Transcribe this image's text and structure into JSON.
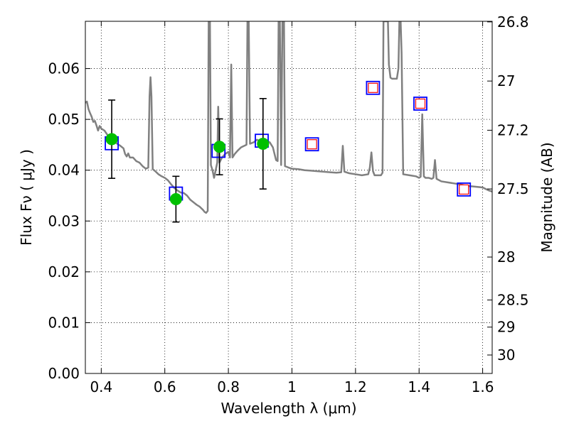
{
  "chart_data": {
    "type": "scatter",
    "xlabel": "Wavelength  λ (μm)",
    "ylabel": "Flux  Fν  ( μJy )",
    "ylabel_right": "Magnitude (AB)",
    "xlim": [
      0.35,
      1.63
    ],
    "ylim": [
      0.0,
      0.0693
    ],
    "grid": true,
    "grid_style": "dotted",
    "x_ticks": [
      0.4,
      0.6,
      0.8,
      1.0,
      1.2,
      1.4,
      1.6
    ],
    "x_tick_labels": [
      "0.4",
      "0.6",
      "0.8",
      "1",
      "1.2",
      "1.4",
      "1.6"
    ],
    "y_ticks": [
      0.0,
      0.01,
      0.02,
      0.03,
      0.04,
      0.05,
      0.06
    ],
    "y_tick_labels": [
      "0.00",
      "0.01",
      "0.02",
      "0.03",
      "0.04",
      "0.05",
      "0.06"
    ],
    "right_ticks": [
      26.8,
      27.0,
      27.2,
      27.5,
      28.0,
      28.5,
      29.0,
      30.0
    ],
    "right_tick_labels": [
      "26.8",
      "27",
      "27.2",
      "27.5",
      "28",
      "28.5",
      "29",
      "30"
    ],
    "series": [
      {
        "style": "line",
        "color": "#808080",
        "points": [
          [
            0.35,
            0.0533
          ],
          [
            0.355,
            0.0535
          ],
          [
            0.36,
            0.052
          ],
          [
            0.365,
            0.0512
          ],
          [
            0.37,
            0.0505
          ],
          [
            0.375,
            0.0495
          ],
          [
            0.38,
            0.0497
          ],
          [
            0.385,
            0.0488
          ],
          [
            0.39,
            0.0478
          ],
          [
            0.395,
            0.0487
          ],
          [
            0.4,
            0.0482
          ],
          [
            0.41,
            0.0478
          ],
          [
            0.42,
            0.0469
          ],
          [
            0.43,
            0.0466
          ],
          [
            0.44,
            0.0458
          ],
          [
            0.45,
            0.0452
          ],
          [
            0.46,
            0.0448
          ],
          [
            0.47,
            0.0443
          ],
          [
            0.475,
            0.0432
          ],
          [
            0.48,
            0.0427
          ],
          [
            0.485,
            0.0433
          ],
          [
            0.49,
            0.0425
          ],
          [
            0.5,
            0.0425
          ],
          [
            0.51,
            0.0418
          ],
          [
            0.52,
            0.0415
          ],
          [
            0.53,
            0.0408
          ],
          [
            0.54,
            0.0403
          ],
          [
            0.548,
            0.0405
          ],
          [
            0.552,
            0.0545
          ],
          [
            0.555,
            0.0583
          ],
          [
            0.558,
            0.0545
          ],
          [
            0.562,
            0.0402
          ],
          [
            0.57,
            0.0398
          ],
          [
            0.58,
            0.0392
          ],
          [
            0.59,
            0.0388
          ],
          [
            0.6,
            0.0385
          ],
          [
            0.61,
            0.038
          ],
          [
            0.62,
            0.0372
          ],
          [
            0.63,
            0.0365
          ],
          [
            0.64,
            0.036
          ],
          [
            0.65,
            0.0356
          ],
          [
            0.66,
            0.0355
          ],
          [
            0.67,
            0.035
          ],
          [
            0.68,
            0.0342
          ],
          [
            0.69,
            0.0337
          ],
          [
            0.7,
            0.0332
          ],
          [
            0.71,
            0.0328
          ],
          [
            0.72,
            0.0322
          ],
          [
            0.725,
            0.0318
          ],
          [
            0.73,
            0.0316
          ],
          [
            0.735,
            0.032
          ],
          [
            0.738,
            0.0693
          ],
          [
            0.742,
            0.0693
          ],
          [
            0.745,
            0.041
          ],
          [
            0.75,
            0.04
          ],
          [
            0.755,
            0.0385
          ],
          [
            0.76,
            0.04
          ],
          [
            0.765,
            0.0415
          ],
          [
            0.768,
            0.0525
          ],
          [
            0.772,
            0.0415
          ],
          [
            0.78,
            0.0425
          ],
          [
            0.79,
            0.0432
          ],
          [
            0.8,
            0.0436
          ],
          [
            0.805,
            0.0425
          ],
          [
            0.809,
            0.0608
          ],
          [
            0.813,
            0.0425
          ],
          [
            0.82,
            0.0432
          ],
          [
            0.83,
            0.0439
          ],
          [
            0.84,
            0.0445
          ],
          [
            0.85,
            0.0448
          ],
          [
            0.857,
            0.045
          ],
          [
            0.86,
            0.0693
          ],
          [
            0.864,
            0.0693
          ],
          [
            0.868,
            0.0452
          ],
          [
            0.88,
            0.0455
          ],
          [
            0.89,
            0.046
          ],
          [
            0.9,
            0.0457
          ],
          [
            0.91,
            0.0462
          ],
          [
            0.92,
            0.0458
          ],
          [
            0.93,
            0.0455
          ],
          [
            0.94,
            0.0445
          ],
          [
            0.95,
            0.042
          ],
          [
            0.955,
            0.0418
          ],
          [
            0.958,
            0.0693
          ],
          [
            0.962,
            0.0693
          ],
          [
            0.966,
            0.041
          ],
          [
            0.97,
            0.0693
          ],
          [
            0.975,
            0.0693
          ],
          [
            0.978,
            0.0408
          ],
          [
            0.99,
            0.0405
          ],
          [
            1.0,
            0.0403
          ],
          [
            1.02,
            0.0402
          ],
          [
            1.04,
            0.04
          ],
          [
            1.06,
            0.0399
          ],
          [
            1.08,
            0.0398
          ],
          [
            1.1,
            0.0397
          ],
          [
            1.12,
            0.0396
          ],
          [
            1.14,
            0.0395
          ],
          [
            1.155,
            0.0396
          ],
          [
            1.16,
            0.0448
          ],
          [
            1.165,
            0.0397
          ],
          [
            1.18,
            0.0394
          ],
          [
            1.2,
            0.0392
          ],
          [
            1.22,
            0.039
          ],
          [
            1.24,
            0.0392
          ],
          [
            1.245,
            0.0405
          ],
          [
            1.25,
            0.0435
          ],
          [
            1.255,
            0.0398
          ],
          [
            1.26,
            0.039
          ],
          [
            1.27,
            0.039
          ],
          [
            1.28,
            0.039
          ],
          [
            1.285,
            0.0395
          ],
          [
            1.288,
            0.0693
          ],
          [
            1.292,
            0.0693
          ],
          [
            1.3,
            0.0693
          ],
          [
            1.302,
            0.0693
          ],
          [
            1.305,
            0.0608
          ],
          [
            1.31,
            0.0582
          ],
          [
            1.315,
            0.058
          ],
          [
            1.32,
            0.058
          ],
          [
            1.33,
            0.058
          ],
          [
            1.335,
            0.06
          ],
          [
            1.338,
            0.0693
          ],
          [
            1.342,
            0.0693
          ],
          [
            1.345,
            0.063
          ],
          [
            1.35,
            0.0392
          ],
          [
            1.37,
            0.039
          ],
          [
            1.39,
            0.0388
          ],
          [
            1.4,
            0.0385
          ],
          [
            1.405,
            0.0387
          ],
          [
            1.41,
            0.051
          ],
          [
            1.415,
            0.0388
          ],
          [
            1.42,
            0.0385
          ],
          [
            1.43,
            0.0385
          ],
          [
            1.44,
            0.0383
          ],
          [
            1.445,
            0.0385
          ],
          [
            1.45,
            0.042
          ],
          [
            1.455,
            0.0383
          ],
          [
            1.47,
            0.0378
          ],
          [
            1.49,
            0.0376
          ],
          [
            1.51,
            0.0374
          ],
          [
            1.53,
            0.0372
          ],
          [
            1.55,
            0.0369
          ],
          [
            1.57,
            0.0368
          ],
          [
            1.6,
            0.0366
          ],
          [
            1.61,
            0.0363
          ],
          [
            1.62,
            0.036
          ],
          [
            1.63,
            0.0358
          ]
        ]
      },
      {
        "style": "markers",
        "marker": "square",
        "color": "#0000ff",
        "points": [
          [
            0.433,
            0.0453
          ],
          [
            0.635,
            0.0354
          ],
          [
            0.769,
            0.0438
          ],
          [
            0.905,
            0.0458
          ],
          [
            1.063,
            0.0451
          ],
          [
            1.255,
            0.0562
          ],
          [
            1.404,
            0.0531
          ],
          [
            1.541,
            0.0362
          ]
        ]
      },
      {
        "style": "markers",
        "marker": "square",
        "color": "#ff0000",
        "points": [
          [
            1.063,
            0.0451
          ],
          [
            1.255,
            0.0562
          ],
          [
            1.404,
            0.0531
          ],
          [
            1.541,
            0.0362
          ]
        ]
      },
      {
        "style": "markers",
        "marker": "circle",
        "color": "#00c000",
        "error_color": "#000000",
        "points": [
          [
            0.433,
            0.0461,
            0.0077
          ],
          [
            0.635,
            0.0343,
            0.0045
          ],
          [
            0.772,
            0.0446,
            0.0055
          ],
          [
            0.909,
            0.0452,
            0.0089
          ]
        ]
      }
    ]
  }
}
